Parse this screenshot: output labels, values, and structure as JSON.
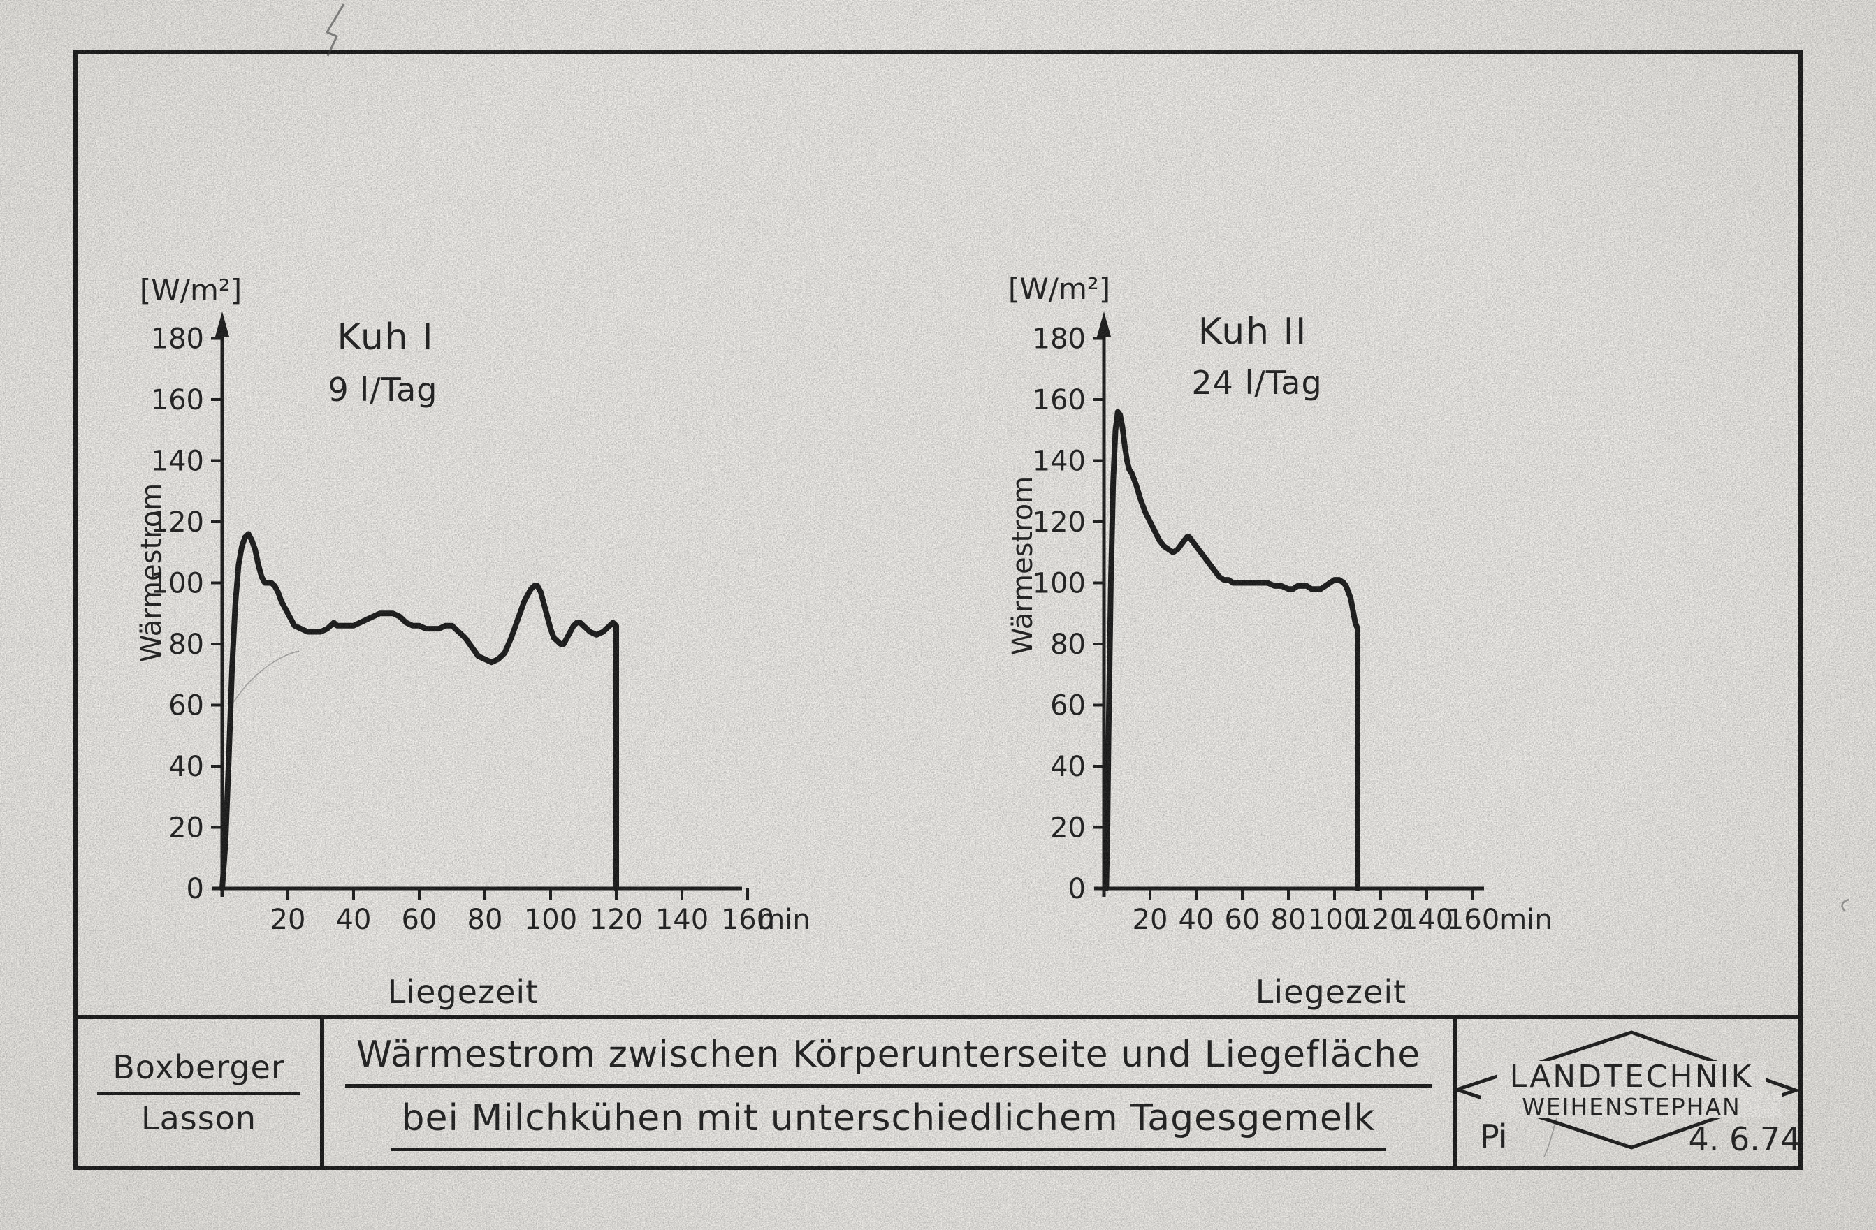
{
  "page": {
    "paper_color": "#ebe9e5",
    "ink_color": "#1a1a1a"
  },
  "chart_data": [
    {
      "type": "line",
      "title": "Kuh I",
      "subtitle": "9 l/Tag",
      "unit_label": "[W/m²]",
      "ylabel": "Wärmestrom",
      "xlabel": "Liegezeit",
      "x_unit": "min",
      "xlim": [
        0,
        160
      ],
      "ylim": [
        0,
        180
      ],
      "x_ticks": [
        20,
        40,
        60,
        80,
        100,
        120,
        140,
        160
      ],
      "y_ticks": [
        0,
        20,
        40,
        60,
        80,
        100,
        120,
        140,
        160,
        180
      ],
      "grid": false,
      "legend": null,
      "points": [
        [
          0,
          0
        ],
        [
          1,
          15
        ],
        [
          2,
          42
        ],
        [
          3,
          72
        ],
        [
          4,
          93
        ],
        [
          5,
          106
        ],
        [
          6,
          112
        ],
        [
          7,
          115
        ],
        [
          8,
          116
        ],
        [
          9,
          114
        ],
        [
          10,
          111
        ],
        [
          11,
          106
        ],
        [
          12,
          102
        ],
        [
          13,
          100
        ],
        [
          14,
          100
        ],
        [
          15,
          100
        ],
        [
          16,
          99
        ],
        [
          17,
          97
        ],
        [
          18,
          94
        ],
        [
          19,
          92
        ],
        [
          20,
          90
        ],
        [
          21,
          88
        ],
        [
          22,
          86
        ],
        [
          24,
          85
        ],
        [
          26,
          84
        ],
        [
          28,
          84
        ],
        [
          30,
          84
        ],
        [
          32,
          85
        ],
        [
          33,
          86
        ],
        [
          34,
          87
        ],
        [
          35,
          86
        ],
        [
          36,
          86
        ],
        [
          38,
          86
        ],
        [
          40,
          86
        ],
        [
          42,
          87
        ],
        [
          44,
          88
        ],
        [
          46,
          89
        ],
        [
          48,
          90
        ],
        [
          50,
          90
        ],
        [
          52,
          90
        ],
        [
          54,
          89
        ],
        [
          56,
          87
        ],
        [
          58,
          86
        ],
        [
          60,
          86
        ],
        [
          62,
          85
        ],
        [
          64,
          85
        ],
        [
          66,
          85
        ],
        [
          68,
          86
        ],
        [
          70,
          86
        ],
        [
          72,
          84
        ],
        [
          74,
          82
        ],
        [
          76,
          79
        ],
        [
          78,
          76
        ],
        [
          80,
          75
        ],
        [
          82,
          74
        ],
        [
          84,
          75
        ],
        [
          86,
          77
        ],
        [
          88,
          82
        ],
        [
          90,
          88
        ],
        [
          92,
          94
        ],
        [
          94,
          98
        ],
        [
          95,
          99
        ],
        [
          96,
          99
        ],
        [
          97,
          97
        ],
        [
          98,
          93
        ],
        [
          99,
          89
        ],
        [
          100,
          85
        ],
        [
          101,
          82
        ],
        [
          102,
          81
        ],
        [
          103,
          80
        ],
        [
          104,
          80
        ],
        [
          105,
          82
        ],
        [
          106,
          84
        ],
        [
          107,
          86
        ],
        [
          108,
          87
        ],
        [
          109,
          87
        ],
        [
          110,
          86
        ],
        [
          112,
          84
        ],
        [
          114,
          83
        ],
        [
          116,
          84
        ],
        [
          118,
          86
        ],
        [
          119,
          87
        ],
        [
          120,
          86
        ],
        [
          120,
          0
        ]
      ]
    },
    {
      "type": "line",
      "title": "Kuh II",
      "subtitle": "24 l/Tag",
      "unit_label": "[W/m²]",
      "ylabel": "Wärmestrom",
      "xlabel": "Liegezeit",
      "x_unit": "min",
      "xlim": [
        0,
        160
      ],
      "ylim": [
        0,
        180
      ],
      "x_ticks": [
        20,
        40,
        60,
        80,
        100,
        120,
        140,
        160
      ],
      "y_ticks": [
        0,
        20,
        40,
        60,
        80,
        100,
        120,
        140,
        160,
        180
      ],
      "grid": false,
      "legend": null,
      "points": [
        [
          1,
          0
        ],
        [
          1.5,
          20
        ],
        [
          2,
          50
        ],
        [
          3,
          100
        ],
        [
          4,
          133
        ],
        [
          5,
          150
        ],
        [
          6,
          156
        ],
        [
          7,
          155
        ],
        [
          8,
          151
        ],
        [
          9,
          145
        ],
        [
          10,
          140
        ],
        [
          11,
          137
        ],
        [
          12,
          136
        ],
        [
          13,
          134
        ],
        [
          14,
          132
        ],
        [
          16,
          127
        ],
        [
          18,
          123
        ],
        [
          20,
          120
        ],
        [
          22,
          117
        ],
        [
          24,
          114
        ],
        [
          26,
          112
        ],
        [
          28,
          111
        ],
        [
          30,
          110
        ],
        [
          32,
          111
        ],
        [
          34,
          113
        ],
        [
          36,
          115
        ],
        [
          37,
          115
        ],
        [
          38,
          114
        ],
        [
          40,
          112
        ],
        [
          42,
          110
        ],
        [
          44,
          108
        ],
        [
          46,
          106
        ],
        [
          48,
          104
        ],
        [
          50,
          102
        ],
        [
          52,
          101
        ],
        [
          54,
          101
        ],
        [
          56,
          100
        ],
        [
          58,
          100
        ],
        [
          60,
          100
        ],
        [
          64,
          100
        ],
        [
          68,
          100
        ],
        [
          71,
          100
        ],
        [
          74,
          99
        ],
        [
          77,
          99
        ],
        [
          80,
          98
        ],
        [
          82,
          98
        ],
        [
          84,
          99
        ],
        [
          86,
          99
        ],
        [
          88,
          99
        ],
        [
          90,
          98
        ],
        [
          92,
          98
        ],
        [
          94,
          98
        ],
        [
          96,
          99
        ],
        [
          98,
          100
        ],
        [
          100,
          101
        ],
        [
          102,
          101
        ],
        [
          104,
          100
        ],
        [
          105,
          99
        ],
        [
          106,
          97
        ],
        [
          107,
          95
        ],
        [
          108,
          91
        ],
        [
          109,
          87
        ],
        [
          110,
          85
        ],
        [
          110,
          0
        ]
      ]
    }
  ],
  "footer": {
    "authors": {
      "line1": "Boxberger",
      "line2": "Lasson"
    },
    "title": {
      "line1": "Wärmestrom zwischen Körperunterseite und Liegefläche",
      "line2": "bei Milchkühen mit unterschiedlichem Tagesgemelk"
    },
    "logo": {
      "line1": "LANDTECHNIK",
      "line2": "WEIHENSTEPHAN",
      "initials": "Pi",
      "date": "4. 6.74"
    }
  }
}
